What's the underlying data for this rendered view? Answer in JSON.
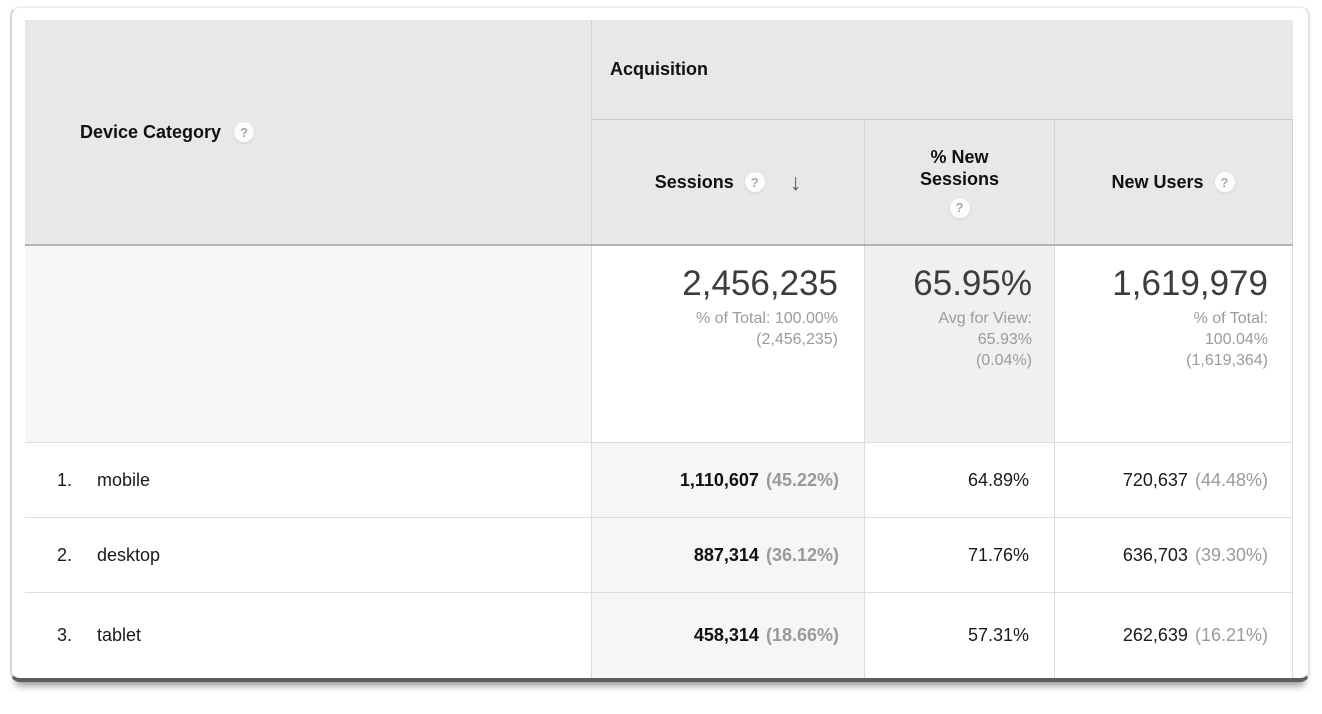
{
  "colors": {
    "header_bg": "#e8e8e8",
    "sorted_column_bg": "#f6f6f6",
    "summary_shaded_bg": "#f0f0f0",
    "row_border": "#dddddd",
    "header_heavy_border": "#b4b4b4",
    "muted_text": "#9b9b9b",
    "frame_bottom_edge": "#5e5e5e"
  },
  "icons": {
    "help": "?",
    "sort_desc": "↓"
  },
  "table": {
    "dimension_header": "Device Category",
    "group_header": "Acquisition",
    "metric_headers": {
      "sessions": "Sessions",
      "pct_new_line1": "% New",
      "pct_new_line2": "Sessions",
      "new_users": "New Users"
    },
    "summary": {
      "sessions_value": "2,456,235",
      "sessions_note1": "% of Total: 100.00%",
      "sessions_note2": "(2,456,235)",
      "pct_new_value": "65.95%",
      "pct_new_note1": "Avg for View:",
      "pct_new_note2": "65.93%",
      "pct_new_note3": "(0.04%)",
      "new_users_value": "1,619,979",
      "new_users_note1": "% of Total:",
      "new_users_note2": "100.04%",
      "new_users_note3": "(1,619,364)"
    },
    "rows": [
      {
        "rank": "1.",
        "device": "mobile",
        "sessions": "1,110,607",
        "sessions_share": "(45.22%)",
        "pct_new_sessions": "64.89%",
        "new_users": "720,637",
        "new_users_share": "(44.48%)"
      },
      {
        "rank": "2.",
        "device": "desktop",
        "sessions": "887,314",
        "sessions_share": "(36.12%)",
        "pct_new_sessions": "71.76%",
        "new_users": "636,703",
        "new_users_share": "(39.30%)"
      },
      {
        "rank": "3.",
        "device": "tablet",
        "sessions": "458,314",
        "sessions_share": "(18.66%)",
        "pct_new_sessions": "57.31%",
        "new_users": "262,639",
        "new_users_share": "(16.21%)"
      }
    ]
  }
}
